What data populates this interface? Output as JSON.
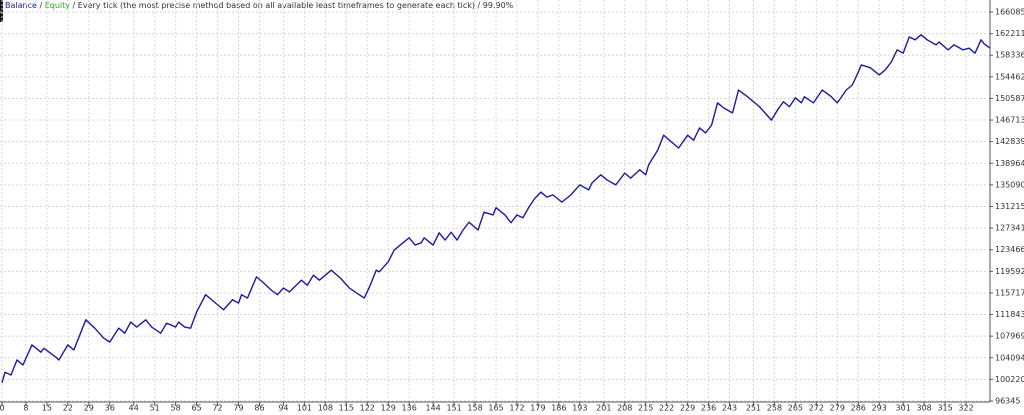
{
  "chart_data": {
    "type": "line",
    "separator": "/",
    "description": "Every tick (the most precise method based on all available least timeframes to generate each tick) / 99.90%",
    "series": [
      {
        "name": "Balance",
        "color": "#1c1c9c",
        "x": [
          0,
          1,
          3,
          5,
          7,
          10,
          13,
          14,
          18,
          19,
          22,
          24,
          28,
          31,
          34,
          36,
          39,
          41,
          43,
          45,
          48,
          50,
          53,
          55,
          58,
          59,
          61,
          63,
          65,
          68,
          70,
          72,
          74,
          77,
          79,
          80,
          82,
          85,
          87,
          90,
          92,
          94,
          96,
          100,
          102,
          104,
          106,
          110,
          113,
          116,
          121,
          123,
          125,
          126,
          129,
          131,
          133,
          136,
          138,
          140,
          141,
          144,
          146,
          148,
          150,
          152,
          154,
          156,
          159,
          161,
          164,
          165,
          168,
          170,
          172,
          174,
          176,
          178,
          180,
          182,
          184,
          187,
          190,
          193,
          196,
          197,
          200,
          202,
          205,
          208,
          210,
          213,
          215,
          216,
          219,
          221,
          224,
          226,
          229,
          231,
          233,
          235,
          237,
          239,
          241,
          244,
          246,
          249,
          253,
          257,
          259,
          261,
          263,
          265,
          267,
          268,
          271,
          274,
          277,
          279,
          282,
          284,
          286,
          287,
          290,
          293,
          295,
          297,
          299,
          301,
          303,
          305,
          307,
          309,
          312,
          313,
          316,
          318,
          321,
          323,
          325,
          327,
          328,
          330
        ],
        "values": [
          99600,
          101500,
          101000,
          103700,
          102800,
          106400,
          105100,
          105800,
          104200,
          103700,
          106400,
          105500,
          110900,
          109400,
          107600,
          106900,
          109400,
          108500,
          110500,
          109600,
          110900,
          109600,
          108500,
          110300,
          109600,
          110500,
          109600,
          109400,
          112300,
          115400,
          114500,
          113600,
          112700,
          114500,
          113900,
          115400,
          114800,
          118600,
          117700,
          116200,
          115400,
          116600,
          115900,
          118000,
          117100,
          118900,
          118000,
          119800,
          118400,
          116600,
          114800,
          117100,
          119800,
          119500,
          121300,
          123400,
          124300,
          125600,
          124300,
          124700,
          125600,
          124300,
          126500,
          125200,
          126600,
          125200,
          127000,
          128400,
          127000,
          130200,
          129700,
          131000,
          129700,
          128300,
          129700,
          129200,
          131100,
          132700,
          133800,
          132900,
          133300,
          132000,
          133300,
          135100,
          134200,
          135400,
          136900,
          136000,
          135100,
          137200,
          136300,
          137800,
          136900,
          138700,
          141300,
          144000,
          142600,
          141700,
          144000,
          143100,
          145300,
          144400,
          145800,
          149800,
          148900,
          148000,
          152100,
          150900,
          149100,
          146700,
          148500,
          150000,
          149100,
          150700,
          149800,
          150900,
          149800,
          152100,
          150900,
          149800,
          152100,
          153000,
          155300,
          156600,
          156100,
          154800,
          155700,
          157100,
          159300,
          158700,
          161600,
          161100,
          162000,
          161100,
          160200,
          160700,
          159300,
          160200,
          159300,
          159600,
          158700,
          161100,
          160400,
          159600
        ]
      },
      {
        "name": "Equity",
        "color": "#22a822"
      }
    ],
    "xlim": [
      0,
      330
    ],
    "xticks": [
      0,
      8,
      15,
      22,
      29,
      36,
      44,
      51,
      58,
      65,
      72,
      79,
      86,
      94,
      101,
      108,
      115,
      122,
      129,
      136,
      144,
      151,
      158,
      165,
      172,
      179,
      186,
      193,
      201,
      208,
      215,
      222,
      229,
      236,
      243,
      251,
      258,
      265,
      272,
      279,
      286,
      293,
      301,
      308,
      315,
      322
    ],
    "ylim": [
      96345,
      166085
    ],
    "yticks": [
      166085,
      162211,
      158336,
      154462,
      150587,
      146713,
      142839,
      138964,
      135090,
      131215,
      127341,
      123466,
      119592,
      115717,
      111843,
      107969,
      104094,
      100220,
      96345
    ],
    "grid": true
  }
}
